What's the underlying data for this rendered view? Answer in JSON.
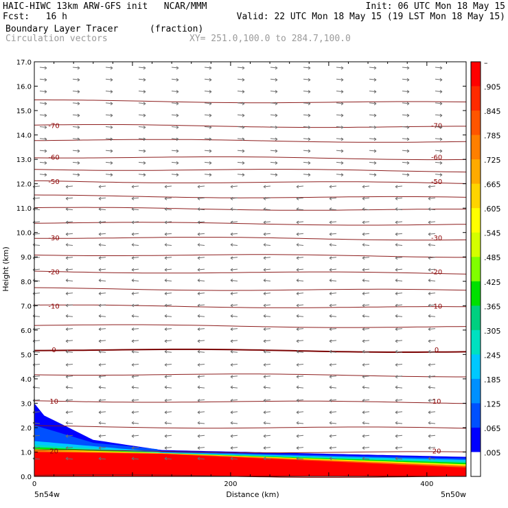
{
  "header": {
    "line1_left": "HAIC-HIWC 13km ARW-GFS init   NCAR/MMM",
    "line1_right": "Init: 06 UTC Mon 18 May 15",
    "line2_left": "Fcst:   16 h",
    "line2_right": "Valid: 22 UTC Mon 18 May 15 (19 LST Mon 18 May 15)",
    "line3_field": "Boundary Layer Tracer",
    "line3_units": "(fraction)",
    "line4_field": "Circulation vectors",
    "line4_xy": "XY= 251.0,100.0 to 284.7,100.0"
  },
  "chart_data": {
    "type": "heatmap",
    "title": "Boundary Layer Tracer",
    "xlabel": "Distance (km)",
    "ylabel": "Height (km)",
    "xlim": [
      0,
      440
    ],
    "ylim": [
      0,
      17
    ],
    "x_ticks": [
      "0",
      "200",
      "400"
    ],
    "x_end_labels": {
      "left": "5n54w",
      "right": "5n50w"
    },
    "y_ticks": [
      "0.0",
      "1.0",
      "2.0",
      "3.0",
      "4.0",
      "5.0",
      "6.0",
      "7.0",
      "8.0",
      "9.0",
      "10.0",
      "11.0",
      "12.0",
      "13.0",
      "14.0",
      "15.0",
      "16.0",
      "17.0"
    ],
    "colorbar": {
      "labels": [
        "–",
        ".905",
        ".845",
        ".785",
        ".725",
        ".665",
        ".605",
        ".545",
        ".485",
        ".425",
        ".365",
        ".305",
        ".245",
        ".185",
        ".125",
        ".065",
        ".005"
      ],
      "colors": [
        "#ff0000",
        "#ff2a00",
        "#ff5500",
        "#ff7f00",
        "#ffaa00",
        "#ffd400",
        "#ffff00",
        "#d4ff00",
        "#80ff00",
        "#00e000",
        "#00d080",
        "#00e0c0",
        "#00c8ff",
        "#0090ff",
        "#0050ff",
        "#0000ff",
        "#ffffff"
      ]
    },
    "temperature_contours": [
      {
        "height_km": 0.05,
        "label": ""
      },
      {
        "height_km": 1.05,
        "label": "20"
      },
      {
        "height_km": 2.05,
        "label": ""
      },
      {
        "height_km": 3.1,
        "label": "10"
      },
      {
        "height_km": 4.2,
        "label": ""
      },
      {
        "height_km": 5.2,
        "label": "0"
      },
      {
        "height_km": 6.2,
        "label": ""
      },
      {
        "height_km": 7.0,
        "label": "-10"
      },
      {
        "height_km": 7.7,
        "label": ""
      },
      {
        "height_km": 8.4,
        "label": "-20"
      },
      {
        "height_km": 9.1,
        "label": ""
      },
      {
        "height_km": 9.8,
        "label": "-30"
      },
      {
        "height_km": 10.4,
        "label": ""
      },
      {
        "height_km": 11.0,
        "label": ""
      },
      {
        "height_km": 11.5,
        "label": ""
      },
      {
        "height_km": 12.1,
        "label": "-50"
      },
      {
        "height_km": 12.6,
        "label": ""
      },
      {
        "height_km": 13.1,
        "label": "-60"
      },
      {
        "height_km": 13.8,
        "label": ""
      },
      {
        "height_km": 14.4,
        "label": "-70"
      },
      {
        "height_km": 15.4,
        "label": ""
      }
    ]
  }
}
